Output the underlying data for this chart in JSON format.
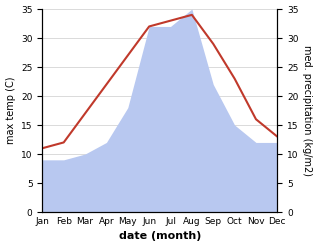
{
  "months": [
    "Jan",
    "Feb",
    "Mar",
    "Apr",
    "May",
    "Jun",
    "Jul",
    "Aug",
    "Sep",
    "Oct",
    "Nov",
    "Dec"
  ],
  "temp": [
    11,
    12,
    17,
    22,
    27,
    32,
    33,
    34,
    29,
    23,
    16,
    13
  ],
  "precip": [
    9,
    9,
    10,
    12,
    18,
    32,
    32,
    35,
    22,
    15,
    12,
    12
  ],
  "temp_color": "#c0392b",
  "precip_fill_color": "#b8c8f0",
  "ylim": [
    0,
    35
  ],
  "yticks": [
    0,
    5,
    10,
    15,
    20,
    25,
    30,
    35
  ],
  "yticks_right": [
    0,
    5,
    10,
    15,
    20,
    25,
    30,
    35
  ],
  "xlabel": "date (month)",
  "ylabel_left": "max temp (C)",
  "ylabel_right": "med. precipitation (kg/m2)",
  "bg_color": "#ffffff",
  "label_fontsize": 7,
  "tick_fontsize": 6.5,
  "xlabel_fontsize": 8,
  "line_width": 1.5
}
